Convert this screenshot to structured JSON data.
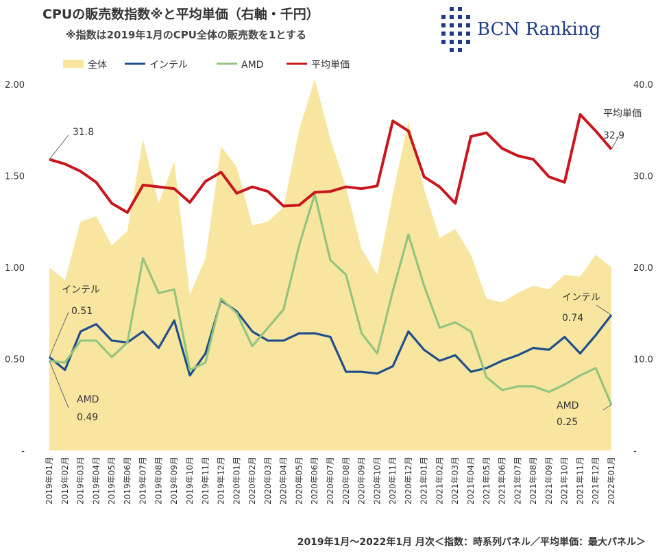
{
  "title": "CPUの販売数指数※と平均単価（右軸・千円）",
  "subtitle": "※指数は2019年1月のCPU全体の販売数を1とする",
  "logo": {
    "brand": "BCN Ranking",
    "icon": "bcn-grid-logo",
    "color": "#1d3c82"
  },
  "footer": "2019年1月～2022年1月 月次＜指数：時系列パネル／平均単価：最大パネル＞",
  "chart_data": {
    "type": "line",
    "categories": [
      "2019年01月",
      "2019年02月",
      "2019年03月",
      "2019年04月",
      "2019年05月",
      "2019年06月",
      "2019年07月",
      "2019年08月",
      "2019年09月",
      "2019年10月",
      "2019年11月",
      "2019年12月",
      "2020年01月",
      "2020年02月",
      "2020年03月",
      "2020年04月",
      "2020年05月",
      "2020年06月",
      "2020年07月",
      "2020年08月",
      "2020年09月",
      "2020年10月",
      "2020年11月",
      "2020年12月",
      "2021年01月",
      "2021年02月",
      "2021年03月",
      "2021年04月",
      "2021年05月",
      "2021年06月",
      "2021年07月",
      "2021年08月",
      "2021年09月",
      "2021年10月",
      "2021年11月",
      "2021年12月",
      "2022年01月"
    ],
    "y_left": {
      "min": 0,
      "max": 2.0,
      "ticks": [
        "-",
        "0.50",
        "1.00",
        "1.50",
        "2.00"
      ],
      "tick_values": [
        0,
        0.5,
        1.0,
        1.5,
        2.0
      ]
    },
    "y_right": {
      "min": 0,
      "max": 40,
      "ticks": [
        "-",
        "10.0",
        "20.0",
        "30.0",
        "40.0"
      ],
      "tick_values": [
        0,
        10,
        20,
        30,
        40
      ]
    },
    "series": [
      {
        "name": "全体",
        "kind": "area",
        "axis": "left",
        "color": "#f8e6a0",
        "values": [
          1.0,
          0.93,
          1.25,
          1.28,
          1.12,
          1.2,
          1.7,
          1.35,
          1.58,
          0.85,
          1.05,
          1.66,
          1.55,
          1.23,
          1.25,
          1.33,
          1.75,
          2.03,
          1.7,
          1.44,
          1.1,
          0.96,
          1.4,
          1.8,
          1.43,
          1.16,
          1.21,
          1.07,
          0.83,
          0.81,
          0.86,
          0.9,
          0.88,
          0.96,
          0.95,
          1.07,
          1.0
        ]
      },
      {
        "name": "インテル",
        "kind": "line",
        "axis": "left",
        "color": "#1f4e8c",
        "values": [
          0.51,
          0.44,
          0.65,
          0.69,
          0.6,
          0.59,
          0.65,
          0.56,
          0.71,
          0.41,
          0.53,
          0.82,
          0.76,
          0.65,
          0.6,
          0.6,
          0.64,
          0.64,
          0.62,
          0.43,
          0.43,
          0.42,
          0.46,
          0.65,
          0.55,
          0.49,
          0.52,
          0.43,
          0.45,
          0.49,
          0.52,
          0.56,
          0.55,
          0.62,
          0.53,
          0.63,
          0.74
        ]
      },
      {
        "name": "AMD",
        "kind": "line",
        "axis": "left",
        "color": "#93c47d",
        "values": [
          0.49,
          0.48,
          0.6,
          0.6,
          0.51,
          0.59,
          1.05,
          0.86,
          0.88,
          0.44,
          0.48,
          0.83,
          0.75,
          0.57,
          0.67,
          0.77,
          1.12,
          1.4,
          1.04,
          0.96,
          0.64,
          0.53,
          0.87,
          1.18,
          0.9,
          0.67,
          0.7,
          0.65,
          0.4,
          0.33,
          0.35,
          0.35,
          0.32,
          0.36,
          0.41,
          0.45,
          0.25
        ]
      },
      {
        "name": "平均単価",
        "kind": "line",
        "axis": "right",
        "color": "#c8161d",
        "values": [
          31.8,
          31.3,
          30.5,
          29.3,
          27.0,
          26.0,
          29.0,
          28.8,
          28.6,
          27.1,
          29.4,
          30.4,
          28.1,
          28.8,
          28.3,
          26.7,
          26.8,
          28.2,
          28.3,
          28.8,
          28.6,
          28.9,
          36.0,
          34.9,
          29.9,
          28.8,
          27.0,
          34.3,
          34.7,
          33.0,
          32.2,
          31.8,
          29.9,
          29.3,
          36.7,
          34.9,
          32.9
        ]
      }
    ],
    "annotations": [
      {
        "series": "平均単価",
        "index": 0,
        "label": "31.8"
      },
      {
        "series": "平均単価",
        "index": 36,
        "name": "平均単価",
        "label": "32.9"
      },
      {
        "series": "インテル",
        "index": 0,
        "name": "インテル",
        "label": "0.51"
      },
      {
        "series": "インテル",
        "index": 36,
        "name": "インテル",
        "label": "0.74"
      },
      {
        "series": "AMD",
        "index": 0,
        "name": "AMD",
        "label": "0.49"
      },
      {
        "series": "AMD",
        "index": 36,
        "name": "AMD",
        "label": "0.25"
      }
    ],
    "legend": "top-left"
  }
}
